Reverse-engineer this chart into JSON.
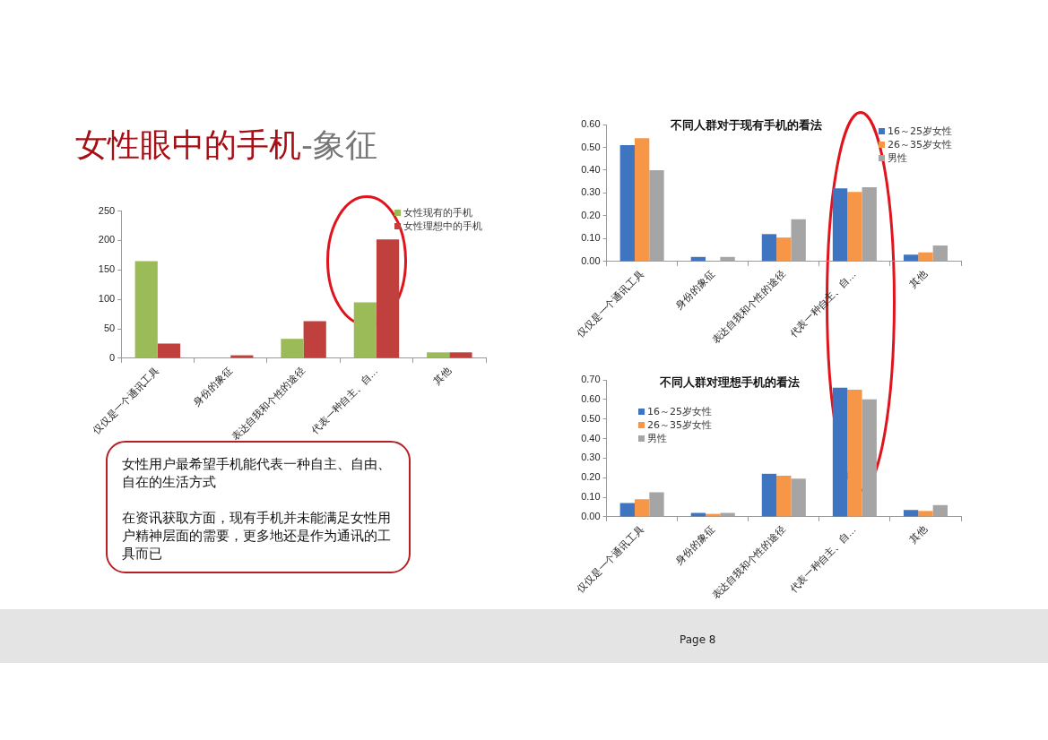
{
  "chart_data": [
    {
      "type": "bar",
      "title": "女性眼中的手机",
      "subtitle": "-象征",
      "categories": [
        "仅仅是一个通讯工具",
        "身份的象征",
        "表达自我和个性的途径",
        "代表一种自主、自…",
        "其他"
      ],
      "series": [
        {
          "name": "女性现有的手机",
          "color": "#9bbb59",
          "values": [
            165,
            null,
            33,
            95,
            10
          ]
        },
        {
          "name": "女性理想中的手机",
          "color": "#c0403d",
          "values": [
            25,
            5,
            63,
            202,
            10
          ]
        }
      ],
      "ylim": [
        0,
        250
      ],
      "yticks": [
        0,
        50,
        100,
        150,
        200,
        250
      ],
      "legend": "top right",
      "annotations": [
        "女性用户最希望手机能代表一种自主、自由、自在的生活方式",
        "在资讯获取方面，现有手机并未能满足女性用户精神层面的需要，更多地还是作为通讯的工具而已",
        "Page 8"
      ]
    },
    {
      "type": "bar",
      "title": "不同人群对于现有手机的看法",
      "categories": [
        "仅仅是一个通讯工具",
        "身份的象征",
        "表达自我和个性的途径",
        "代表一种自主、自…",
        "其他"
      ],
      "series": [
        {
          "name": "16～25岁女性",
          "color": "#3f74c0",
          "values": [
            0.51,
            0.02,
            0.12,
            0.32,
            0.03
          ]
        },
        {
          "name": "26～35岁女性",
          "color": "#f79646",
          "values": [
            0.54,
            0,
            0.105,
            0.305,
            0.04
          ]
        },
        {
          "name": "男性",
          "color": "#a5a5a5",
          "values": [
            0.4,
            0.02,
            0.185,
            0.325,
            0.07
          ]
        }
      ],
      "ylim": [
        0,
        0.6
      ],
      "yticks": [
        {
          "value": 0,
          "label": "0.00"
        },
        {
          "value": 0.1,
          "label": "0.10"
        },
        {
          "value": 0.2,
          "label": "0.20"
        },
        {
          "value": 0.3,
          "label": "0.30"
        },
        {
          "value": 0.4,
          "label": "0.40"
        },
        {
          "value": 0.5,
          "label": "0.50"
        },
        {
          "value": 0.6,
          "label": "0.60"
        }
      ],
      "legend": "top right"
    },
    {
      "type": "bar",
      "title": "不同人群对理想手机的看法",
      "categories": [
        "仅仅是一个通讯工具",
        "身份的象征",
        "表达自我和个性的途径",
        "代表一种自主、自…",
        "其他"
      ],
      "series": [
        {
          "name": "16～25岁女性",
          "color": "#3f74c0",
          "values": [
            0.07,
            0.02,
            0.22,
            0.66,
            0.035
          ]
        },
        {
          "name": "26～35岁女性",
          "color": "#f79646",
          "values": [
            0.09,
            0.015,
            0.21,
            0.65,
            0.03
          ]
        },
        {
          "name": "男性",
          "color": "#a5a5a5",
          "values": [
            0.125,
            0.02,
            0.195,
            0.6,
            0.06
          ]
        }
      ],
      "ylim": [
        0,
        0.7
      ],
      "yticks": [
        {
          "value": 0,
          "label": "0.00"
        },
        {
          "value": 0.1,
          "label": "0.10"
        },
        {
          "value": 0.2,
          "label": "0.20"
        },
        {
          "value": 0.3,
          "label": "0.30"
        },
        {
          "value": 0.4,
          "label": "0.40"
        },
        {
          "value": 0.5,
          "label": "0.50"
        },
        {
          "value": 0.6,
          "label": "0.60"
        },
        {
          "value": 0.7,
          "label": "0.70"
        }
      ],
      "legend": "top left"
    }
  ]
}
